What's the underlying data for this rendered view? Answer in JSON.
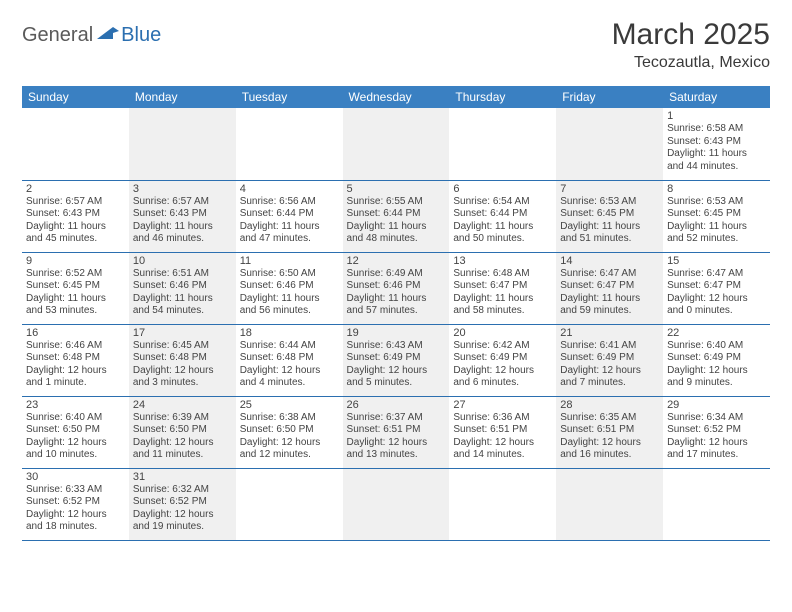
{
  "logo": {
    "general": "General",
    "blue": "Blue"
  },
  "title": "March 2025",
  "location": "Tecozautla, Mexico",
  "colors": {
    "header_bg": "#3a80c2",
    "header_fg": "#ffffff",
    "border": "#2b6fb0",
    "shaded": "#f0f0f0",
    "text": "#444444",
    "logo_gray": "#5a5a5a",
    "logo_blue": "#2b6fb0"
  },
  "day_headers": [
    "Sunday",
    "Monday",
    "Tuesday",
    "Wednesday",
    "Thursday",
    "Friday",
    "Saturday"
  ],
  "weeks": [
    [
      {
        "shaded": false
      },
      {
        "shaded": true
      },
      {
        "shaded": false
      },
      {
        "shaded": true
      },
      {
        "shaded": false
      },
      {
        "shaded": true
      },
      {
        "day": "1",
        "shaded": false,
        "sunrise": "Sunrise: 6:58 AM",
        "sunset": "Sunset: 6:43 PM",
        "daylight": "Daylight: 11 hours and 44 minutes."
      }
    ],
    [
      {
        "day": "2",
        "shaded": false,
        "sunrise": "Sunrise: 6:57 AM",
        "sunset": "Sunset: 6:43 PM",
        "daylight": "Daylight: 11 hours and 45 minutes."
      },
      {
        "day": "3",
        "shaded": true,
        "sunrise": "Sunrise: 6:57 AM",
        "sunset": "Sunset: 6:43 PM",
        "daylight": "Daylight: 11 hours and 46 minutes."
      },
      {
        "day": "4",
        "shaded": false,
        "sunrise": "Sunrise: 6:56 AM",
        "sunset": "Sunset: 6:44 PM",
        "daylight": "Daylight: 11 hours and 47 minutes."
      },
      {
        "day": "5",
        "shaded": true,
        "sunrise": "Sunrise: 6:55 AM",
        "sunset": "Sunset: 6:44 PM",
        "daylight": "Daylight: 11 hours and 48 minutes."
      },
      {
        "day": "6",
        "shaded": false,
        "sunrise": "Sunrise: 6:54 AM",
        "sunset": "Sunset: 6:44 PM",
        "daylight": "Daylight: 11 hours and 50 minutes."
      },
      {
        "day": "7",
        "shaded": true,
        "sunrise": "Sunrise: 6:53 AM",
        "sunset": "Sunset: 6:45 PM",
        "daylight": "Daylight: 11 hours and 51 minutes."
      },
      {
        "day": "8",
        "shaded": false,
        "sunrise": "Sunrise: 6:53 AM",
        "sunset": "Sunset: 6:45 PM",
        "daylight": "Daylight: 11 hours and 52 minutes."
      }
    ],
    [
      {
        "day": "9",
        "shaded": false,
        "sunrise": "Sunrise: 6:52 AM",
        "sunset": "Sunset: 6:45 PM",
        "daylight": "Daylight: 11 hours and 53 minutes."
      },
      {
        "day": "10",
        "shaded": true,
        "sunrise": "Sunrise: 6:51 AM",
        "sunset": "Sunset: 6:46 PM",
        "daylight": "Daylight: 11 hours and 54 minutes."
      },
      {
        "day": "11",
        "shaded": false,
        "sunrise": "Sunrise: 6:50 AM",
        "sunset": "Sunset: 6:46 PM",
        "daylight": "Daylight: 11 hours and 56 minutes."
      },
      {
        "day": "12",
        "shaded": true,
        "sunrise": "Sunrise: 6:49 AM",
        "sunset": "Sunset: 6:46 PM",
        "daylight": "Daylight: 11 hours and 57 minutes."
      },
      {
        "day": "13",
        "shaded": false,
        "sunrise": "Sunrise: 6:48 AM",
        "sunset": "Sunset: 6:47 PM",
        "daylight": "Daylight: 11 hours and 58 minutes."
      },
      {
        "day": "14",
        "shaded": true,
        "sunrise": "Sunrise: 6:47 AM",
        "sunset": "Sunset: 6:47 PM",
        "daylight": "Daylight: 11 hours and 59 minutes."
      },
      {
        "day": "15",
        "shaded": false,
        "sunrise": "Sunrise: 6:47 AM",
        "sunset": "Sunset: 6:47 PM",
        "daylight": "Daylight: 12 hours and 0 minutes."
      }
    ],
    [
      {
        "day": "16",
        "shaded": false,
        "sunrise": "Sunrise: 6:46 AM",
        "sunset": "Sunset: 6:48 PM",
        "daylight": "Daylight: 12 hours and 1 minute."
      },
      {
        "day": "17",
        "shaded": true,
        "sunrise": "Sunrise: 6:45 AM",
        "sunset": "Sunset: 6:48 PM",
        "daylight": "Daylight: 12 hours and 3 minutes."
      },
      {
        "day": "18",
        "shaded": false,
        "sunrise": "Sunrise: 6:44 AM",
        "sunset": "Sunset: 6:48 PM",
        "daylight": "Daylight: 12 hours and 4 minutes."
      },
      {
        "day": "19",
        "shaded": true,
        "sunrise": "Sunrise: 6:43 AM",
        "sunset": "Sunset: 6:49 PM",
        "daylight": "Daylight: 12 hours and 5 minutes."
      },
      {
        "day": "20",
        "shaded": false,
        "sunrise": "Sunrise: 6:42 AM",
        "sunset": "Sunset: 6:49 PM",
        "daylight": "Daylight: 12 hours and 6 minutes."
      },
      {
        "day": "21",
        "shaded": true,
        "sunrise": "Sunrise: 6:41 AM",
        "sunset": "Sunset: 6:49 PM",
        "daylight": "Daylight: 12 hours and 7 minutes."
      },
      {
        "day": "22",
        "shaded": false,
        "sunrise": "Sunrise: 6:40 AM",
        "sunset": "Sunset: 6:49 PM",
        "daylight": "Daylight: 12 hours and 9 minutes."
      }
    ],
    [
      {
        "day": "23",
        "shaded": false,
        "sunrise": "Sunrise: 6:40 AM",
        "sunset": "Sunset: 6:50 PM",
        "daylight": "Daylight: 12 hours and 10 minutes."
      },
      {
        "day": "24",
        "shaded": true,
        "sunrise": "Sunrise: 6:39 AM",
        "sunset": "Sunset: 6:50 PM",
        "daylight": "Daylight: 12 hours and 11 minutes."
      },
      {
        "day": "25",
        "shaded": false,
        "sunrise": "Sunrise: 6:38 AM",
        "sunset": "Sunset: 6:50 PM",
        "daylight": "Daylight: 12 hours and 12 minutes."
      },
      {
        "day": "26",
        "shaded": true,
        "sunrise": "Sunrise: 6:37 AM",
        "sunset": "Sunset: 6:51 PM",
        "daylight": "Daylight: 12 hours and 13 minutes."
      },
      {
        "day": "27",
        "shaded": false,
        "sunrise": "Sunrise: 6:36 AM",
        "sunset": "Sunset: 6:51 PM",
        "daylight": "Daylight: 12 hours and 14 minutes."
      },
      {
        "day": "28",
        "shaded": true,
        "sunrise": "Sunrise: 6:35 AM",
        "sunset": "Sunset: 6:51 PM",
        "daylight": "Daylight: 12 hours and 16 minutes."
      },
      {
        "day": "29",
        "shaded": false,
        "sunrise": "Sunrise: 6:34 AM",
        "sunset": "Sunset: 6:52 PM",
        "daylight": "Daylight: 12 hours and 17 minutes."
      }
    ],
    [
      {
        "day": "30",
        "shaded": false,
        "sunrise": "Sunrise: 6:33 AM",
        "sunset": "Sunset: 6:52 PM",
        "daylight": "Daylight: 12 hours and 18 minutes."
      },
      {
        "day": "31",
        "shaded": true,
        "sunrise": "Sunrise: 6:32 AM",
        "sunset": "Sunset: 6:52 PM",
        "daylight": "Daylight: 12 hours and 19 minutes."
      },
      {
        "shaded": false
      },
      {
        "shaded": true
      },
      {
        "shaded": false
      },
      {
        "shaded": true
      },
      {
        "shaded": false
      }
    ]
  ]
}
